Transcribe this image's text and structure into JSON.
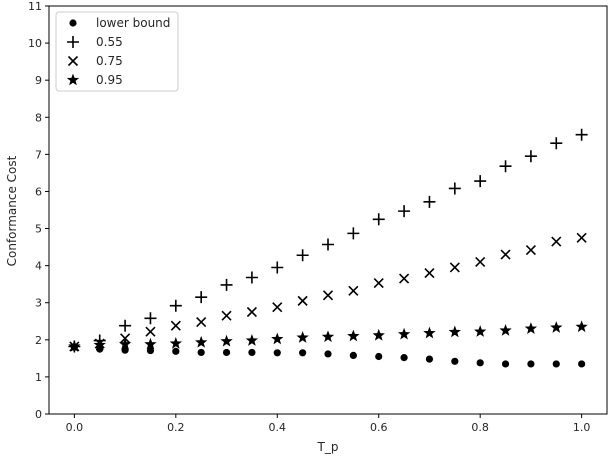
{
  "chart_data": {
    "type": "scatter",
    "xlabel": "T_p",
    "ylabel": "Conformance Cost",
    "xlim": [
      -0.05,
      1.05
    ],
    "ylim": [
      0,
      11
    ],
    "xticks": [
      0.0,
      0.2,
      0.4,
      0.6,
      0.8,
      1.0
    ],
    "xtick_labels": [
      "0.0",
      "0.2",
      "0.4",
      "0.6",
      "0.8",
      "1.0"
    ],
    "yticks": [
      0,
      1,
      2,
      3,
      4,
      5,
      6,
      7,
      8,
      9,
      10,
      11
    ],
    "ytick_labels": [
      "0",
      "1",
      "2",
      "3",
      "4",
      "5",
      "6",
      "7",
      "8",
      "9",
      "10",
      "11"
    ],
    "grid": false,
    "legend_position": "top-left",
    "x": [
      0.0,
      0.05,
      0.1,
      0.15,
      0.2,
      0.25,
      0.3,
      0.35,
      0.4,
      0.45,
      0.5,
      0.55,
      0.6,
      0.65,
      0.7,
      0.75,
      0.8,
      0.85,
      0.9,
      0.95,
      1.0
    ],
    "series": [
      {
        "name": "lower bound",
        "marker": "circle",
        "values": [
          1.8,
          1.75,
          1.72,
          1.71,
          1.69,
          1.66,
          1.66,
          1.66,
          1.65,
          1.65,
          1.62,
          1.58,
          1.55,
          1.52,
          1.48,
          1.42,
          1.38,
          1.35,
          1.35,
          1.35,
          1.35
        ]
      },
      {
        "name": "0.55",
        "marker": "plus",
        "values": [
          1.82,
          1.98,
          2.38,
          2.58,
          2.92,
          3.15,
          3.48,
          3.68,
          3.95,
          4.28,
          4.57,
          4.87,
          5.25,
          5.47,
          5.72,
          6.08,
          6.28,
          6.68,
          6.95,
          7.3,
          7.53
        ]
      },
      {
        "name": "0.75",
        "marker": "x",
        "values": [
          1.82,
          1.9,
          2.04,
          2.22,
          2.38,
          2.48,
          2.65,
          2.75,
          2.88,
          3.05,
          3.2,
          3.32,
          3.53,
          3.65,
          3.8,
          3.95,
          4.1,
          4.3,
          4.42,
          4.65,
          4.75
        ]
      },
      {
        "name": "0.95",
        "marker": "star",
        "values": [
          1.82,
          1.86,
          1.88,
          1.88,
          1.9,
          1.93,
          1.96,
          1.98,
          2.02,
          2.06,
          2.08,
          2.1,
          2.12,
          2.15,
          2.18,
          2.21,
          2.22,
          2.25,
          2.3,
          2.33,
          2.35
        ]
      }
    ],
    "colors": {
      "marker": "#000000",
      "axis": "#000000",
      "text": "#262626",
      "legend_border": "#cccccc"
    }
  }
}
